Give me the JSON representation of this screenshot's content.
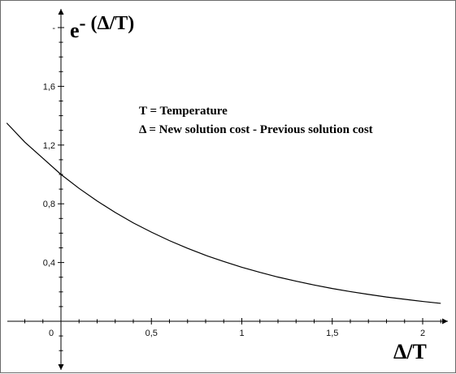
{
  "chart_data": {
    "type": "line",
    "title": "",
    "ylabel_base": "e",
    "ylabel_exponent": "- (Δ/T)",
    "xlabel": "Δ/T",
    "xlim": [
      -0.3,
      2.15
    ],
    "ylim": [
      -0.3,
      2.1
    ],
    "grid": false,
    "x_ticks": [
      0.5,
      1,
      1.5,
      2
    ],
    "x_tick_labels": [
      "0,5",
      "1",
      "1,5",
      "2"
    ],
    "origin_label": "0",
    "y_ticks": [
      0.4,
      0.8,
      1.2,
      1.6,
      2.0
    ],
    "y_tick_labels": [
      "0,4",
      "0,8",
      "1,2",
      "1,6",
      "-"
    ],
    "legend": [
      "T = Temperature",
      "Δ = New solution cost - Previous solution cost"
    ],
    "legend_placement": "upper-center",
    "line_color": "#000000",
    "series": [
      {
        "x": [
          -0.3,
          -0.2,
          -0.1,
          0,
          0.1,
          0.2,
          0.3,
          0.4,
          0.5,
          0.6,
          0.7,
          0.8,
          0.9,
          1.0,
          1.1,
          1.2,
          1.3,
          1.4,
          1.5,
          1.6,
          1.7,
          1.8,
          1.9,
          2.0,
          2.1
        ],
        "values": [
          1.35,
          1.22,
          1.11,
          1.0,
          0.905,
          0.819,
          0.741,
          0.67,
          0.607,
          0.549,
          0.497,
          0.449,
          0.407,
          0.368,
          0.333,
          0.301,
          0.273,
          0.247,
          0.223,
          0.202,
          0.183,
          0.165,
          0.15,
          0.135,
          0.122
        ]
      }
    ]
  }
}
